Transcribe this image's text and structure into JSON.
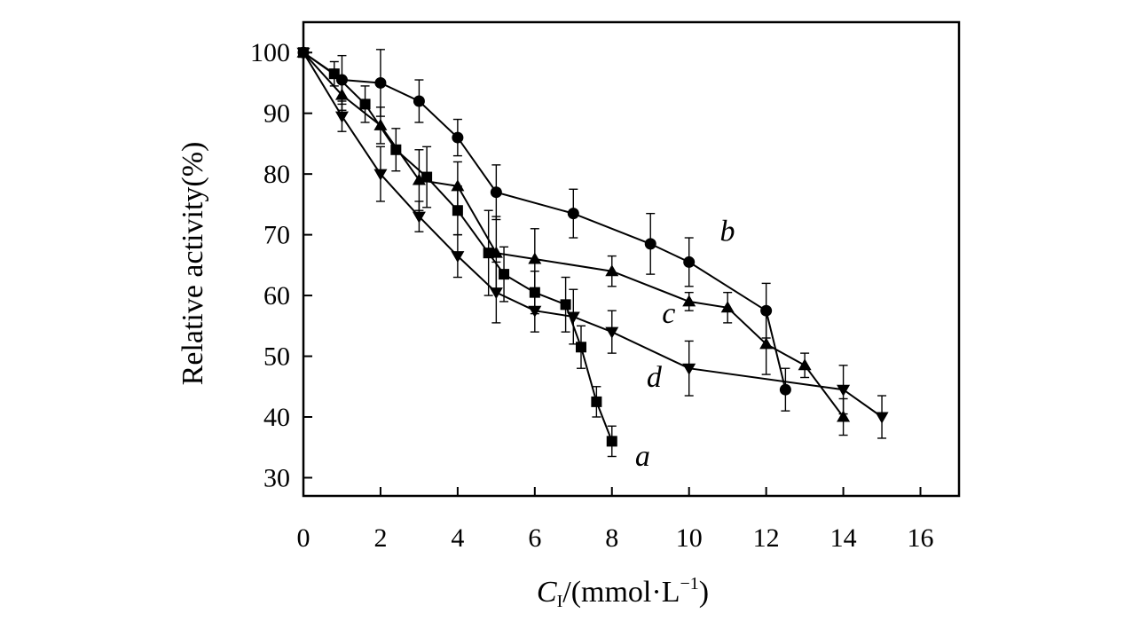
{
  "chart_data": {
    "type": "line",
    "title": "",
    "xlabel_main": "C",
    "xlabel_sub": "I",
    "xlabel_rest": "/(mmol·L",
    "xlabel_sup": "−1",
    "xlabel_close": ")",
    "ylabel": "Relative activity(%)",
    "xlim": [
      0,
      17
    ],
    "ylim": [
      27,
      105
    ],
    "xticks": [
      0,
      2,
      4,
      6,
      8,
      10,
      12,
      14,
      16
    ],
    "yticks": [
      30,
      40,
      50,
      60,
      70,
      80,
      90,
      100
    ],
    "grid": false,
    "series": [
      {
        "name": "a",
        "marker": "square",
        "label_at": [
          8.6,
          32
        ],
        "x": [
          0,
          0.8,
          1.6,
          2.4,
          3.2,
          4,
          4.8,
          5.2,
          6,
          6.8,
          7.2,
          7.6,
          8
        ],
        "y": [
          100,
          96.5,
          91.5,
          84,
          79.5,
          74,
          67,
          63.5,
          60.5,
          58.5,
          51.5,
          42.5,
          36
        ],
        "err": [
          0,
          2,
          3,
          3.5,
          5,
          4,
          7,
          4.5,
          3.5,
          4.5,
          3.5,
          2.5,
          2.5
        ]
      },
      {
        "name": "b",
        "marker": "circle",
        "label_at": [
          10.8,
          69
        ],
        "x": [
          0,
          1,
          2,
          3,
          4,
          5,
          7,
          9,
          10,
          12,
          12.5
        ],
        "y": [
          100,
          95.5,
          95,
          92,
          86,
          77,
          73.5,
          68.5,
          65.5,
          57.5,
          44.5
        ],
        "err": [
          0,
          4,
          5.5,
          3.5,
          3,
          4.5,
          4,
          5,
          4,
          4.5,
          3.5
        ]
      },
      {
        "name": "c",
        "marker": "triangle-up",
        "label_at": [
          9.3,
          55.5
        ],
        "x": [
          0,
          1,
          2,
          3,
          4,
          5,
          6,
          8,
          10,
          11,
          12,
          13,
          14
        ],
        "y": [
          100,
          93,
          88,
          79,
          78,
          67,
          66,
          64,
          59,
          58,
          52,
          48.5,
          40
        ],
        "err": [
          0,
          2.5,
          3,
          5,
          4,
          6,
          5,
          2.5,
          1.5,
          2.5,
          5,
          2,
          3
        ]
      },
      {
        "name": "d",
        "marker": "triangle-down",
        "label_at": [
          8.9,
          45
        ],
        "x": [
          0,
          1,
          2,
          3,
          4,
          5,
          6,
          7,
          8,
          10,
          14,
          15
        ],
        "y": [
          100,
          89.5,
          80,
          73,
          66.5,
          60.5,
          57.5,
          56.5,
          54,
          48,
          44.5,
          40
        ],
        "err": [
          0,
          2.5,
          4.5,
          2.5,
          3.5,
          5,
          3.5,
          4.5,
          3.5,
          4.5,
          4,
          3.5
        ]
      }
    ]
  }
}
